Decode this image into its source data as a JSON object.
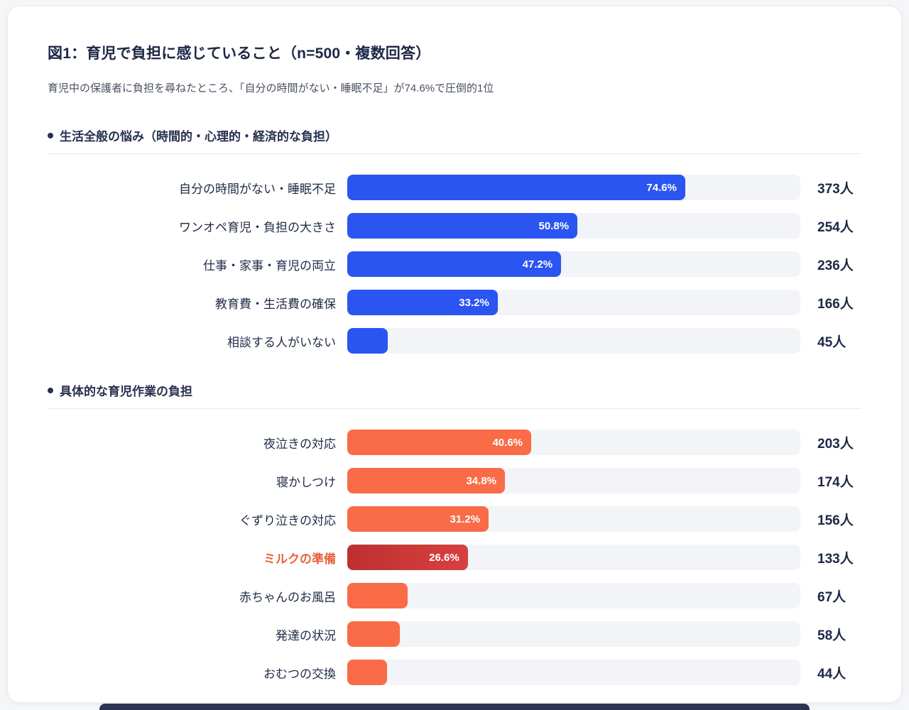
{
  "page": {
    "title": "図1：育児で負担に感じていること（n=500・複数回答）",
    "subtitle": "育児中の保護者に負担を尋ねたところ、「自分の時間がない・睡眠不足」が74.6%で圧倒的1位"
  },
  "icons": {
    "bullet": "●"
  },
  "colors": {
    "accent_blue": "#2b55f0",
    "accent_orange": "#f96c47",
    "highlight_red": "#d23a3a",
    "highlight_label": "#e8623d",
    "track": "#f2f4f7",
    "text_dark": "#27314f",
    "footer": "#2d3552"
  },
  "chart_data": [
    {
      "type": "bar",
      "orientation": "horizontal",
      "title": "生活全般の悩み（時間的・心理的・経済的な負担）",
      "xlim": [
        0,
        100
      ],
      "grid": false,
      "legend": "none",
      "color": "#2b55f0",
      "categories": [
        "自分の時間がない・睡眠不足",
        "ワンオペ育児・負担の大きさ",
        "仕事・家事・育児の両立",
        "教育費・生活費の確保",
        "相談する人がいない"
      ],
      "values": [
        74.6,
        50.8,
        47.2,
        33.2,
        9.0
      ],
      "value_labels": [
        "74.6%",
        "50.8%",
        "47.2%",
        "33.2%",
        ""
      ],
      "counts": [
        "373人",
        "254人",
        "236人",
        "166人",
        "45人"
      ]
    },
    {
      "type": "bar",
      "orientation": "horizontal",
      "title": "具体的な育児作業の負担",
      "xlim": [
        0,
        100
      ],
      "grid": false,
      "legend": "none",
      "color": "#f96c47",
      "highlight_index": 3,
      "highlight_color": "#d23a3a",
      "categories": [
        "夜泣きの対応",
        "寝かしつけ",
        "ぐずり泣きの対応",
        "ミルクの準備",
        "赤ちゃんのお風呂",
        "発達の状況",
        "おむつの交換"
      ],
      "values": [
        40.6,
        34.8,
        31.2,
        26.6,
        13.4,
        11.6,
        8.8
      ],
      "value_labels": [
        "40.6%",
        "34.8%",
        "31.2%",
        "26.6%",
        "",
        "",
        ""
      ],
      "counts": [
        "203人",
        "174人",
        "156人",
        "133人",
        "67人",
        "58人",
        "44人"
      ]
    }
  ]
}
